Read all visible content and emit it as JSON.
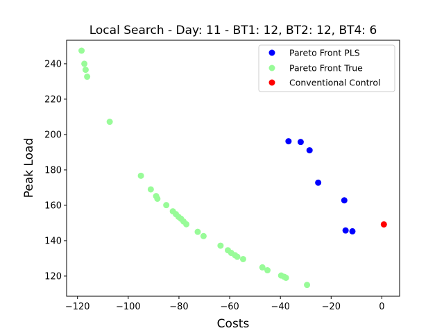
{
  "chart_data": {
    "type": "scatter",
    "title": "Local Search - Day: 11 - BT1: 12, BT2: 12, BT4: 6",
    "xlabel": "Costs",
    "ylabel": "Peak Load",
    "xlim": [
      -124.3,
      7.0
    ],
    "ylim": [
      108.6,
      253.3
    ],
    "xticks": [
      -120,
      -100,
      -80,
      -60,
      -40,
      -20,
      0
    ],
    "xtick_labels": [
      "−120",
      "−100",
      "−80",
      "−60",
      "−40",
      "−20",
      "0"
    ],
    "yticks": [
      120,
      140,
      160,
      180,
      200,
      220,
      240
    ],
    "ytick_labels": [
      "120",
      "140",
      "160",
      "180",
      "200",
      "220",
      "240"
    ],
    "grid": false,
    "legend_position": "top-right",
    "series": [
      {
        "name": "Pareto Front PLS",
        "color": "#0000ff",
        "points": [
          [
            -36.8,
            196.2
          ],
          [
            -32.0,
            195.8
          ],
          [
            -28.5,
            191.1
          ],
          [
            -25.1,
            172.8
          ],
          [
            -14.8,
            162.8
          ],
          [
            -14.3,
            145.8
          ],
          [
            -11.6,
            145.3
          ]
        ]
      },
      {
        "name": "Pareto Front True",
        "color": "#98fb98",
        "points": [
          [
            -118.4,
            247.4
          ],
          [
            -117.3,
            240.0
          ],
          [
            -116.8,
            236.6
          ],
          [
            -116.2,
            232.7
          ],
          [
            -107.3,
            207.2
          ],
          [
            -95.0,
            176.7
          ],
          [
            -91.1,
            169.0
          ],
          [
            -89.0,
            165.2
          ],
          [
            -88.5,
            163.7
          ],
          [
            -85.0,
            160.1
          ],
          [
            -82.4,
            156.6
          ],
          [
            -81.2,
            155.0
          ],
          [
            -80.2,
            153.5
          ],
          [
            -79.2,
            152.4
          ],
          [
            -78.2,
            150.9
          ],
          [
            -77.1,
            149.3
          ],
          [
            -72.6,
            145.0
          ],
          [
            -70.3,
            142.6
          ],
          [
            -63.6,
            137.2
          ],
          [
            -60.7,
            134.6
          ],
          [
            -59.4,
            133.1
          ],
          [
            -57.9,
            131.8
          ],
          [
            -57.0,
            130.9
          ],
          [
            -54.7,
            129.6
          ],
          [
            -47.1,
            124.9
          ],
          [
            -45.1,
            123.3
          ],
          [
            -39.7,
            120.3
          ],
          [
            -38.5,
            119.6
          ],
          [
            -37.8,
            119.0
          ],
          [
            -29.5,
            115.0
          ]
        ]
      },
      {
        "name": "Conventional Control",
        "color": "#ff0000",
        "points": [
          [
            0.8,
            149.2
          ]
        ]
      }
    ]
  }
}
